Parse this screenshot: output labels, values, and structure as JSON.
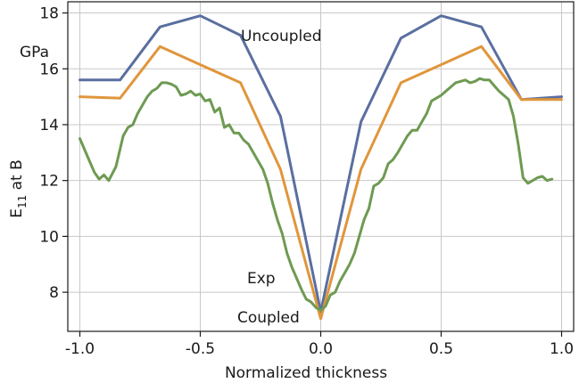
{
  "chart_data": {
    "type": "line",
    "xlabel": "Normalized thickness",
    "ylabel_main": "E",
    "ylabel_sub": "11",
    "ylabel_suffix": " at B",
    "yunit": "GPa",
    "xlim": [
      -1.05,
      1.05
    ],
    "ylim": [
      6.6,
      18.4
    ],
    "grid": true,
    "xticks": [
      -1.0,
      -0.5,
      0.0,
      0.5,
      1.0
    ],
    "xtick_labels": [
      "-1.0",
      "-0.5",
      "0.0",
      "0.5",
      "1.0"
    ],
    "yticks": [
      8,
      10,
      12,
      14,
      16,
      18
    ],
    "ytick_labels": [
      "8",
      "10",
      "12",
      "14",
      "16",
      "18"
    ],
    "annotations": {
      "uncoupled": "Uncoupled",
      "exp": "Exp",
      "coupled": "Coupled"
    },
    "series": [
      {
        "key": "uncoupled",
        "color": "#5a6fa0",
        "x": [
          -1.0,
          -0.833,
          -0.667,
          -0.5,
          -0.333,
          -0.167,
          0.0,
          0.167,
          0.333,
          0.5,
          0.667,
          0.833,
          1.0
        ],
        "y": [
          15.6,
          15.6,
          17.5,
          17.9,
          17.2,
          14.3,
          7.3,
          14.1,
          17.1,
          17.9,
          17.5,
          14.9,
          15.0
        ]
      },
      {
        "key": "coupled",
        "color": "#e0963c",
        "x": [
          -1.0,
          -0.833,
          -0.667,
          -0.5,
          -0.333,
          -0.167,
          0.0,
          0.167,
          0.333,
          0.5,
          0.667,
          0.833,
          1.0
        ],
        "y": [
          15.0,
          14.95,
          16.8,
          16.15,
          15.5,
          12.4,
          7.05,
          12.4,
          15.5,
          16.15,
          16.8,
          14.9,
          14.9
        ]
      },
      {
        "key": "exp",
        "color": "#6e9a52",
        "x": [
          -1.0,
          -0.97,
          -0.94,
          -0.92,
          -0.9,
          -0.88,
          -0.85,
          -0.82,
          -0.8,
          -0.78,
          -0.76,
          -0.74,
          -0.72,
          -0.7,
          -0.68,
          -0.66,
          -0.64,
          -0.62,
          -0.6,
          -0.58,
          -0.56,
          -0.54,
          -0.52,
          -0.5,
          -0.48,
          -0.46,
          -0.44,
          -0.42,
          -0.4,
          -0.38,
          -0.36,
          -0.34,
          -0.32,
          -0.3,
          -0.28,
          -0.26,
          -0.24,
          -0.22,
          -0.2,
          -0.18,
          -0.16,
          -0.14,
          -0.12,
          -0.1,
          -0.08,
          -0.06,
          -0.04,
          -0.02,
          0.0,
          0.02,
          0.04,
          0.06,
          0.08,
          0.1,
          0.12,
          0.14,
          0.16,
          0.18,
          0.2,
          0.22,
          0.24,
          0.26,
          0.28,
          0.3,
          0.32,
          0.34,
          0.36,
          0.38,
          0.4,
          0.42,
          0.44,
          0.46,
          0.48,
          0.5,
          0.52,
          0.54,
          0.56,
          0.58,
          0.6,
          0.62,
          0.64,
          0.66,
          0.68,
          0.7,
          0.72,
          0.74,
          0.76,
          0.78,
          0.8,
          0.82,
          0.84,
          0.86,
          0.88,
          0.9,
          0.92,
          0.94,
          0.96
        ],
        "y": [
          13.5,
          12.9,
          12.3,
          12.05,
          12.2,
          12.0,
          12.5,
          13.6,
          13.9,
          14.0,
          14.4,
          14.7,
          15.0,
          15.2,
          15.3,
          15.5,
          15.5,
          15.45,
          15.35,
          15.05,
          15.1,
          15.2,
          15.05,
          15.1,
          14.85,
          14.9,
          14.45,
          14.6,
          13.9,
          14.0,
          13.7,
          13.7,
          13.45,
          13.3,
          13.0,
          12.7,
          12.4,
          11.9,
          11.2,
          10.6,
          10.1,
          9.4,
          8.9,
          8.5,
          8.1,
          7.75,
          7.65,
          7.45,
          7.35,
          7.5,
          7.9,
          8.0,
          8.4,
          8.7,
          9.0,
          9.4,
          10.0,
          10.6,
          11.0,
          11.8,
          11.9,
          12.1,
          12.6,
          12.75,
          13.0,
          13.3,
          13.6,
          13.8,
          13.8,
          14.1,
          14.4,
          14.85,
          14.95,
          15.05,
          15.2,
          15.35,
          15.5,
          15.55,
          15.6,
          15.5,
          15.55,
          15.65,
          15.6,
          15.6,
          15.4,
          15.2,
          15.05,
          14.9,
          14.3,
          13.3,
          12.1,
          11.9,
          12.0,
          12.1,
          12.15,
          12.0,
          12.05
        ]
      }
    ]
  }
}
